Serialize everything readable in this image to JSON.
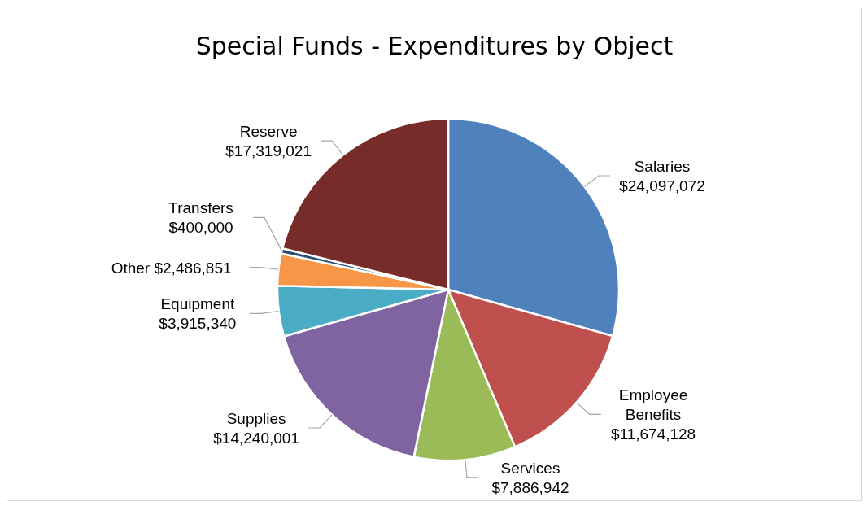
{
  "chart_data": {
    "type": "pie",
    "title": "Special Funds - Expenditures by Object",
    "categories": [
      "Salaries",
      "Employee Benefits",
      "Services",
      "Supplies",
      "Equipment",
      "Other",
      "Transfers",
      "Reserve"
    ],
    "values": [
      24097072,
      11674128,
      7886942,
      14240001,
      3915340,
      2486851,
      400000,
      17319021
    ],
    "value_labels": [
      "$24,097,072",
      "$11,674,128",
      "$7,886,942",
      "$14,240,001",
      "$3,915,340",
      "$2,486,851",
      "$400,000",
      "$17,319,021"
    ],
    "colors": [
      "#4f81bd",
      "#c0504d",
      "#9bbb59",
      "#8064a2",
      "#4bacc6",
      "#f79646",
      "#2c4d75",
      "#772c2a"
    ],
    "legend": false
  }
}
